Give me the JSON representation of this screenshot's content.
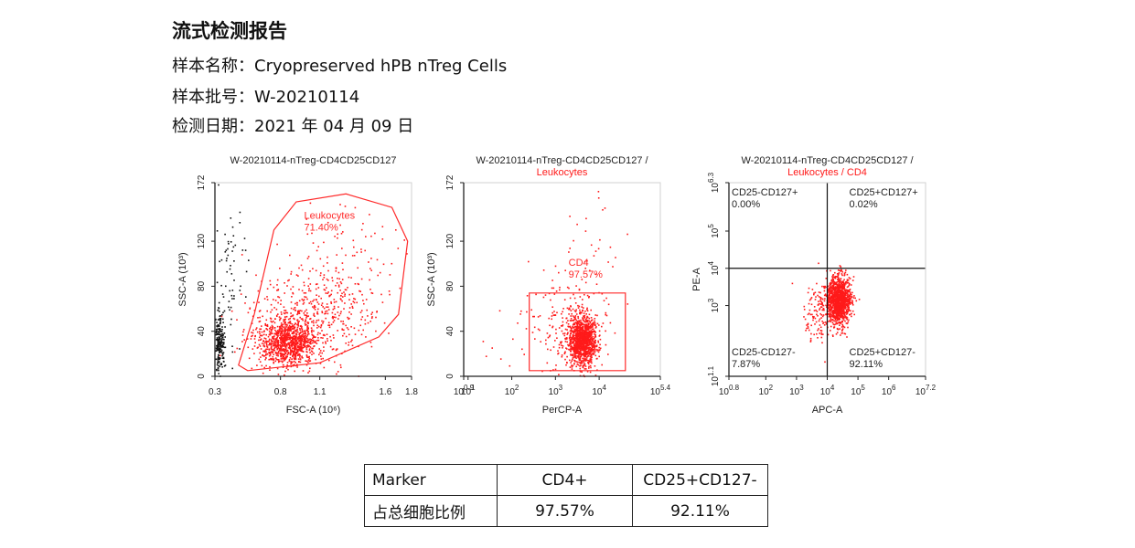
{
  "report": {
    "title": "流式检测报告",
    "sample_name_label": "样本名称：",
    "sample_name": "Cryopreserved hPB nTreg Cells",
    "batch_label": "样本批号：",
    "batch": "W-20210114",
    "date_label": "检测日期：",
    "date": "2021 年 04 月 09 日"
  },
  "colors": {
    "event": "#ff1a1a",
    "gate": "#ff2a2a",
    "other_event": "#111111",
    "axis": "#222222"
  },
  "chart_data": [
    {
      "type": "scatter",
      "title": "W-20210114-nTreg-CD4CD25CD127",
      "subtitle": "",
      "xlabel": "FSC-A (10⁶)",
      "ylabel": "SSC-A (10³)",
      "xlim": [
        0.3,
        1.8
      ],
      "ylim": [
        0,
        172
      ],
      "x_ticks": [
        "0.3",
        "0.8",
        "1.1",
        "1.6",
        "1.8"
      ],
      "x_tick_values": [
        0.3,
        0.8,
        1.1,
        1.6,
        1.8
      ],
      "y_ticks": [
        "0",
        "40",
        "80",
        "120",
        "172"
      ],
      "y_tick_values": [
        0,
        40,
        80,
        120,
        172
      ],
      "gates": [
        {
          "name": "Leukocytes",
          "value": "71.40%",
          "polygon": [
            [
              0.48,
              10
            ],
            [
              0.6,
              55
            ],
            [
              0.75,
              130
            ],
            [
              0.92,
              155
            ],
            [
              1.3,
              162
            ],
            [
              1.65,
              150
            ],
            [
              1.77,
              120
            ],
            [
              1.7,
              55
            ],
            [
              1.55,
              35
            ],
            [
              1.1,
              12
            ],
            [
              0.55,
              5
            ]
          ]
        }
      ],
      "populations": [
        {
          "color": "#ff1a1a",
          "cx": 0.85,
          "cy": 30,
          "sx": 0.11,
          "sy": 10,
          "n": 900
        },
        {
          "color": "#ff1a1a",
          "cx": 1.0,
          "cy": 50,
          "sx": 0.25,
          "sy": 20,
          "n": 500
        },
        {
          "color": "#ff1a1a",
          "cx": 1.25,
          "cy": 90,
          "sx": 0.22,
          "sy": 28,
          "n": 140
        },
        {
          "color": "#111111",
          "cx": 0.33,
          "cy": 30,
          "sx": 0.02,
          "sy": 12,
          "n": 220
        },
        {
          "color": "#111111",
          "cx": 0.4,
          "cy": 75,
          "sx": 0.08,
          "sy": 40,
          "n": 70
        }
      ]
    },
    {
      "type": "scatter",
      "title": "W-20210114-nTreg-CD4CD25CD127 /",
      "subtitle": "Leukocytes",
      "xlabel": "PerCP-A",
      "ylabel": "SSC-A (10³)",
      "xscale": "log",
      "xlim": [
        0.9,
        5.4
      ],
      "ylim": [
        0,
        172
      ],
      "x_ticks": [
        "10^0.9",
        "10^1",
        "10^2",
        "10^3",
        "10^4",
        "10^5.4"
      ],
      "x_tick_values": [
        0.9,
        1,
        2,
        3,
        4,
        5.4
      ],
      "y_ticks": [
        "0",
        "40",
        "80",
        "120",
        "172"
      ],
      "y_tick_values": [
        0,
        40,
        80,
        120,
        172
      ],
      "gates": [
        {
          "name": "CD4",
          "value": "97.57%",
          "polygon": [
            [
              2.4,
              5
            ],
            [
              4.6,
              5
            ],
            [
              4.6,
              74
            ],
            [
              2.4,
              74
            ]
          ]
        }
      ],
      "populations": [
        {
          "color": "#ff1a1a",
          "cx": 3.6,
          "cy": 33,
          "sx": 0.16,
          "sy": 11,
          "n": 1200
        },
        {
          "color": "#ff1a1a",
          "cx": 3.3,
          "cy": 45,
          "sx": 0.45,
          "sy": 22,
          "n": 180
        },
        {
          "color": "#ff1a1a",
          "cx": 3.8,
          "cy": 110,
          "sx": 0.3,
          "sy": 30,
          "n": 30
        },
        {
          "color": "#ff1a1a",
          "cx": 2.0,
          "cy": 30,
          "sx": 0.6,
          "sy": 15,
          "n": 14
        }
      ]
    },
    {
      "type": "scatter",
      "title": "W-20210114-nTreg-CD4CD25CD127 /",
      "subtitle": "Leukocytes / CD4",
      "xlabel": "APC-A",
      "ylabel": "PE-A",
      "xscale": "log",
      "yscale": "log",
      "xlim": [
        0.8,
        7.2
      ],
      "ylim": [
        1.1,
        6.3
      ],
      "x_ticks": [
        "10^0.8",
        "10^2",
        "10^3",
        "10^4",
        "10^5",
        "10^6",
        "10^7.2"
      ],
      "x_tick_values": [
        0.8,
        2,
        3,
        4,
        5,
        6,
        7.2
      ],
      "y_ticks": [
        "10^1.1",
        "10^3",
        "10^4",
        "10^5",
        "10^6.3"
      ],
      "y_tick_values": [
        1.1,
        3,
        4,
        5,
        6.3
      ],
      "quadrant": {
        "x": 4.0,
        "y": 4.0
      },
      "quadrant_labels": [
        {
          "pos": "top-left",
          "name": "CD25-CD127+",
          "value": "0.00%"
        },
        {
          "pos": "top-right",
          "name": "CD25+CD127+",
          "value": "0.02%"
        },
        {
          "pos": "bottom-left",
          "name": "CD25-CD127-",
          "value": "7.87%"
        },
        {
          "pos": "bottom-right",
          "name": "CD25+CD127-",
          "value": "92.11%"
        }
      ],
      "populations": [
        {
          "color": "#ff1a1a",
          "cx": 4.35,
          "cy": 3.15,
          "sx": 0.2,
          "sy": 0.32,
          "n": 1300
        },
        {
          "color": "#ff1a1a",
          "cx": 3.7,
          "cy": 2.8,
          "sx": 0.25,
          "sy": 0.4,
          "n": 120
        }
      ]
    }
  ],
  "table": {
    "headers": [
      "Marker",
      "CD4+",
      "CD25+CD127-"
    ],
    "row_label": "占总细胞比例",
    "values": [
      "97.57%",
      "92.11%"
    ]
  }
}
